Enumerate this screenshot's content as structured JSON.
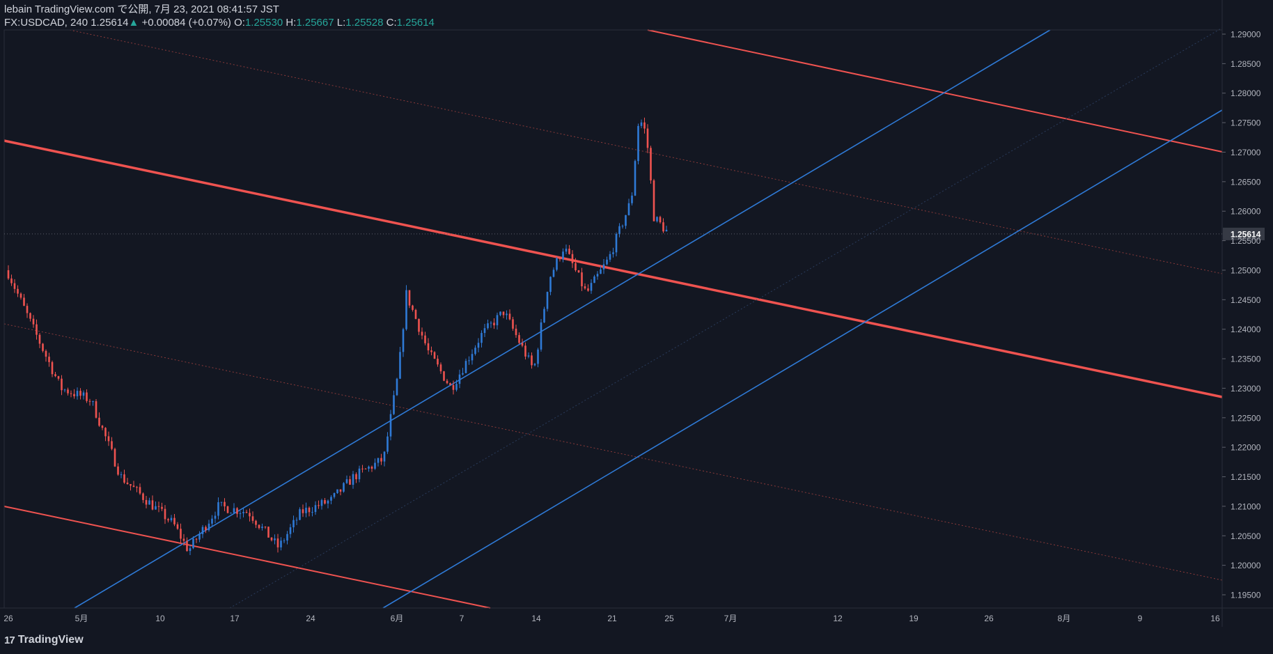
{
  "header": {
    "publish_line": "lebain TradingView.com で公開, 7月 23, 2021 08:41:57 JST",
    "symbol_interval": "FX:USDCAD, 240",
    "last_price": "1.25614",
    "change": "+0.00084 (+0.07%)",
    "open_label": "O:",
    "open": "1.25530",
    "high_label": "H:",
    "high": "1.25667",
    "low_label": "L:",
    "low": "1.25528",
    "close_label": "C:",
    "close": "1.25614"
  },
  "footer": {
    "brand": "TradingView"
  },
  "colors": {
    "background": "#131722",
    "up_candle": "#2f7ad6",
    "down_candle": "#ef5350",
    "blue_channel": "#2f7ad6",
    "red_channel": "#ef5350",
    "price_tag_bg": "#363a45"
  },
  "chart_data": {
    "type": "candlestick",
    "symbol": "FX:USDCAD",
    "interval": "240",
    "y_ticks": [
      "1.29000",
      "1.28500",
      "1.28000",
      "1.27500",
      "1.27000",
      "1.26500",
      "1.26000",
      "1.25614",
      "1.25500",
      "1.25000",
      "1.24500",
      "1.24000",
      "1.23500",
      "1.23000",
      "1.22500",
      "1.22000",
      "1.21500",
      "1.21000",
      "1.20500",
      "1.20000",
      "1.19500"
    ],
    "ylim": [
      1.1935,
      1.291
    ],
    "current_price": 1.25614,
    "x_ticks": [
      "26",
      "5月",
      "10",
      "17",
      "24",
      "6月",
      "7",
      "14",
      "21",
      "25",
      "7月",
      "12",
      "19",
      "26",
      "8月",
      "9",
      "16"
    ],
    "approx_path": [
      {
        "date": "2021-04-26",
        "close": 1.2495
      },
      {
        "date": "2021-04-29",
        "close": 1.241
      },
      {
        "date": "2021-05-03",
        "close": 1.23
      },
      {
        "date": "2021-05-07",
        "close": 1.228
      },
      {
        "date": "2021-05-11",
        "close": 1.215
      },
      {
        "date": "2021-05-14",
        "close": 1.2115
      },
      {
        "date": "2021-05-18",
        "close": 1.207
      },
      {
        "date": "2021-05-20",
        "close": 1.2025
      },
      {
        "date": "2021-05-24",
        "close": 1.21
      },
      {
        "date": "2021-05-28",
        "close": 1.209
      },
      {
        "date": "2021-06-01",
        "close": 1.203
      },
      {
        "date": "2021-06-04",
        "close": 1.209
      },
      {
        "date": "2021-06-08",
        "close": 1.211
      },
      {
        "date": "2021-06-11",
        "close": 1.215
      },
      {
        "date": "2021-06-15",
        "close": 1.218
      },
      {
        "date": "2021-06-17",
        "close": 1.233
      },
      {
        "date": "2021-06-18",
        "close": 1.246
      },
      {
        "date": "2021-06-21",
        "close": 1.236
      },
      {
        "date": "2021-06-24",
        "close": 1.23
      },
      {
        "date": "2021-06-28",
        "close": 1.239
      },
      {
        "date": "2021-07-01",
        "close": 1.243
      },
      {
        "date": "2021-07-05",
        "close": 1.233
      },
      {
        "date": "2021-07-07",
        "close": 1.2485
      },
      {
        "date": "2021-07-09",
        "close": 1.254
      },
      {
        "date": "2021-07-12",
        "close": 1.246
      },
      {
        "date": "2021-07-15",
        "close": 1.252
      },
      {
        "date": "2021-07-18",
        "close": 1.262
      },
      {
        "date": "2021-07-19",
        "close": 1.276
      },
      {
        "date": "2021-07-20",
        "close": 1.273
      },
      {
        "date": "2021-07-21",
        "close": 1.259
      },
      {
        "date": "2021-07-23",
        "close": 1.25614
      }
    ]
  }
}
